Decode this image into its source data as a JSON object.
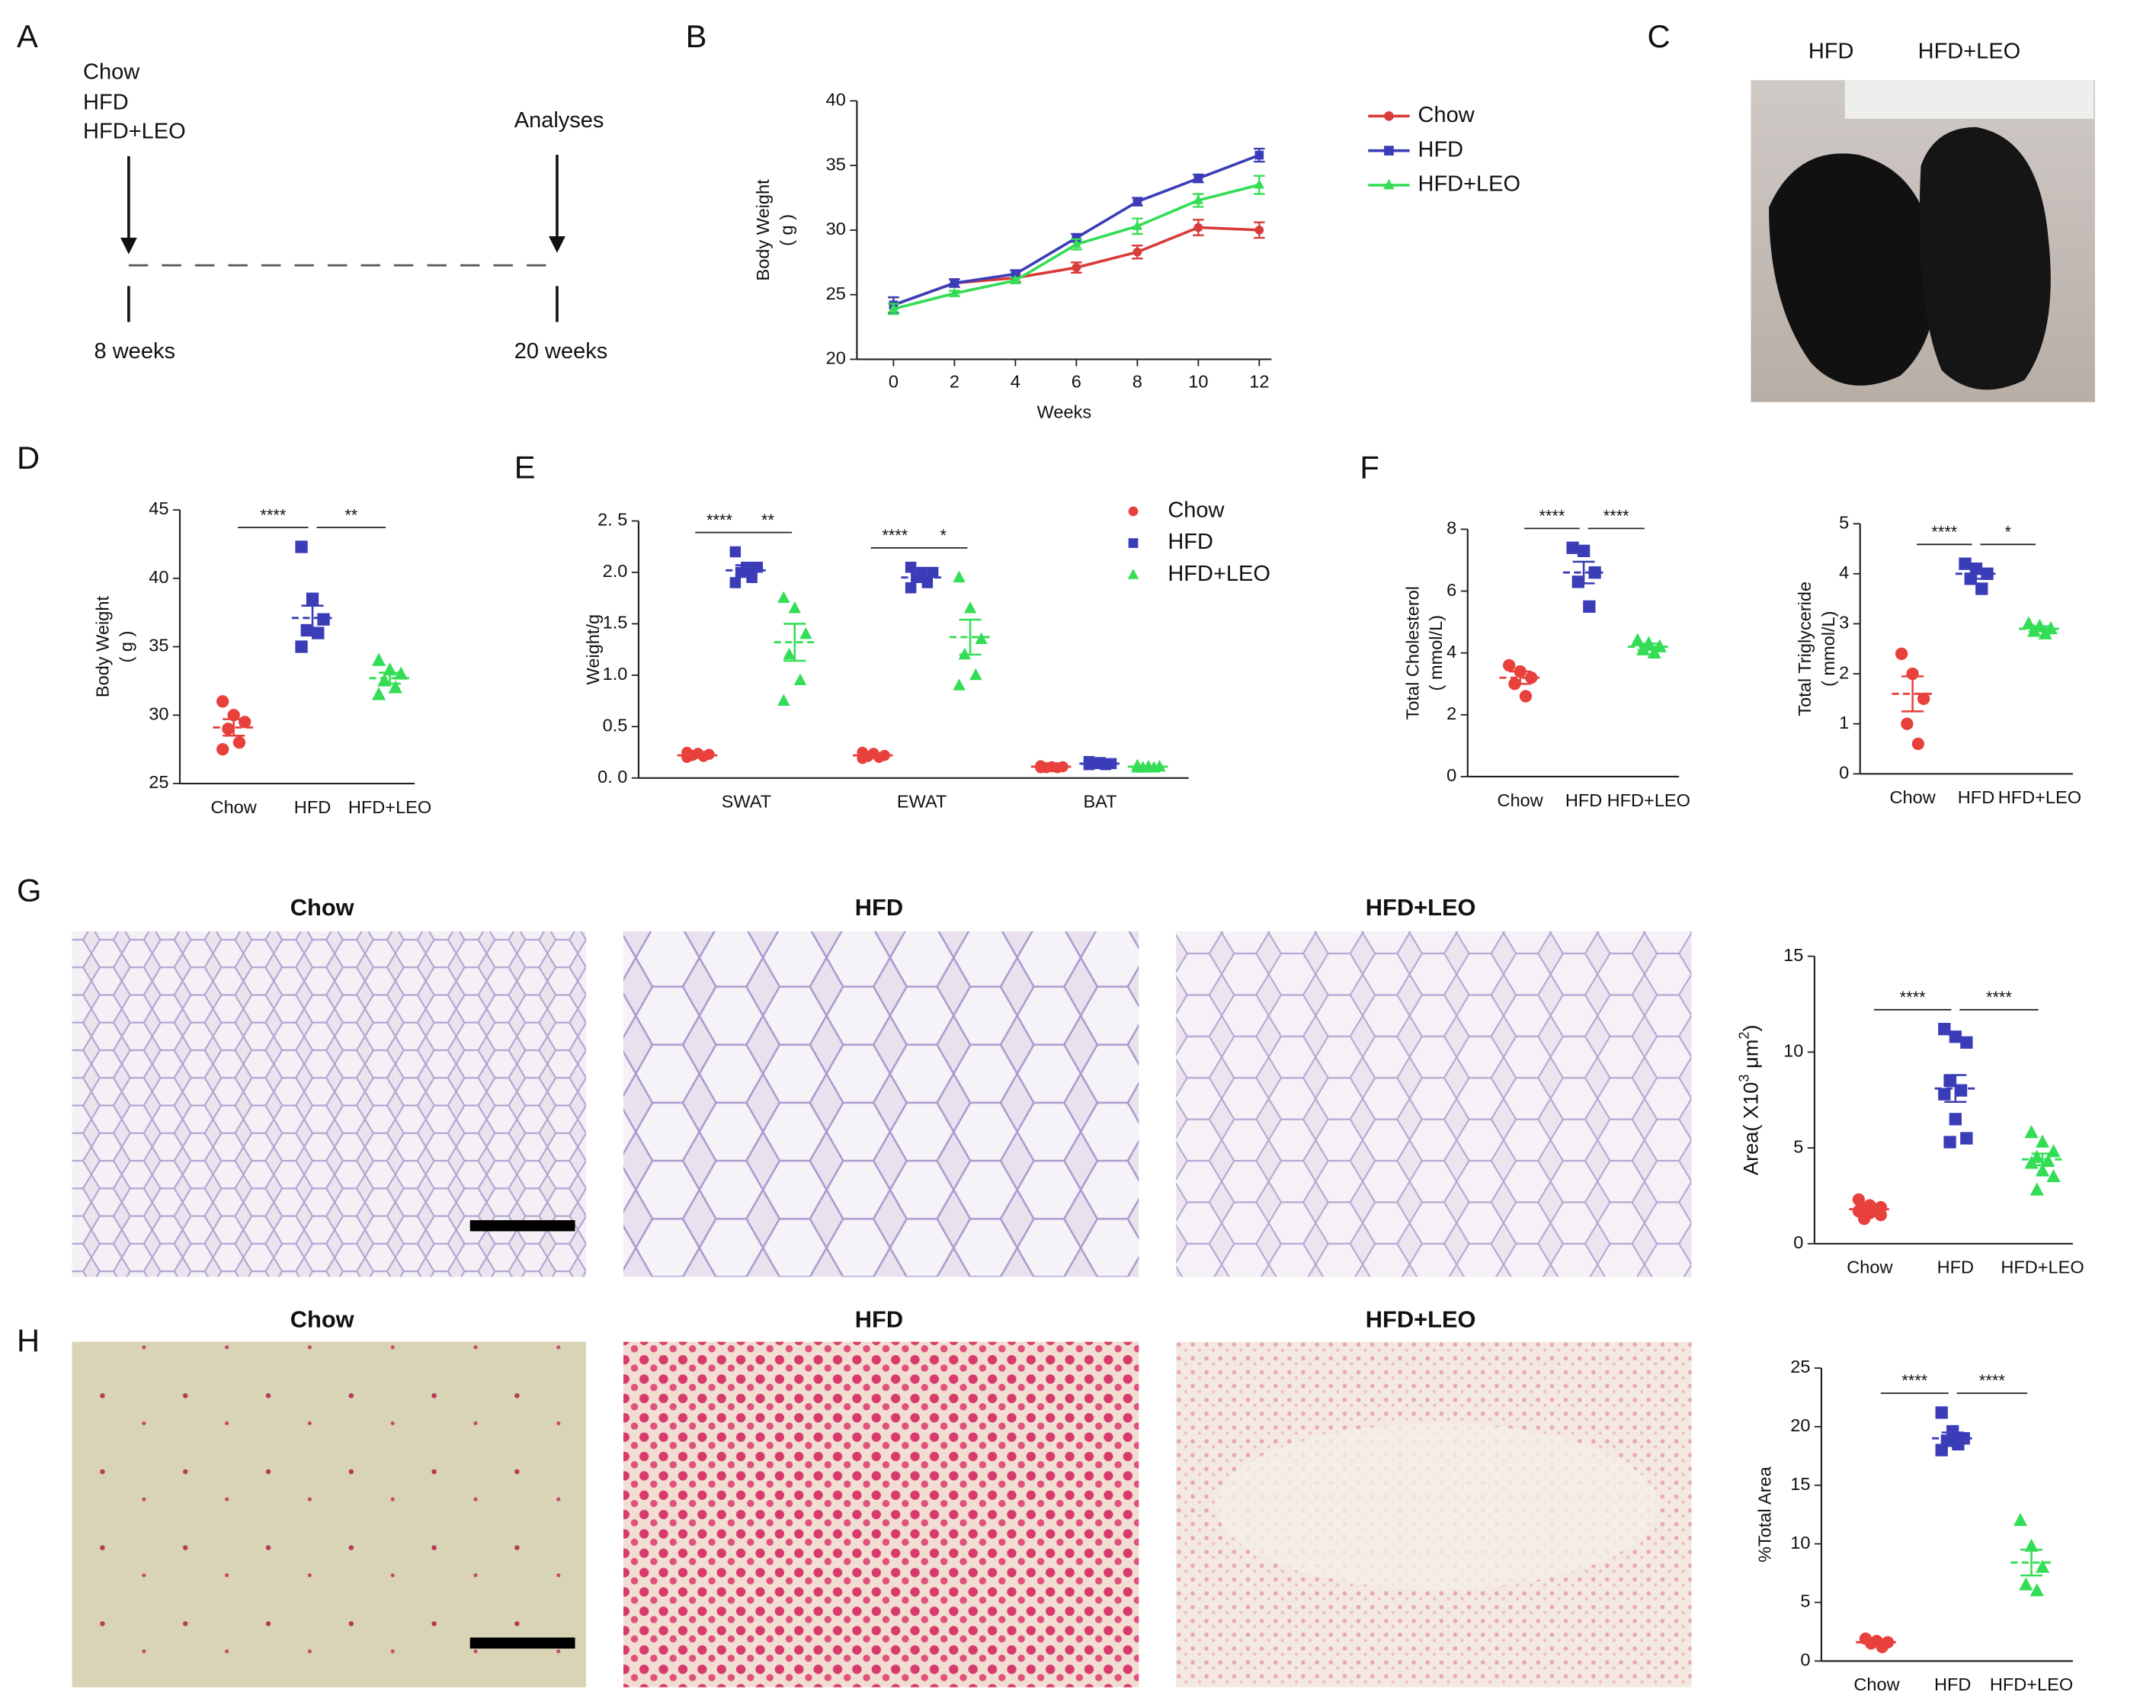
{
  "figure": {
    "panel_labels": [
      "A",
      "B",
      "C",
      "D",
      "E",
      "F",
      "G",
      "H"
    ]
  },
  "timeline": {
    "groups": [
      "Chow",
      "HFD",
      "HFD+LEO"
    ],
    "end_label": "Analyses",
    "start": "8 weeks",
    "end": "20 weeks"
  },
  "photo": {
    "labels": [
      "HFD",
      "HFD+LEO"
    ]
  },
  "histology": [
    {
      "titles": [
        "Chow",
        "HFD",
        "HFD+LEO"
      ]
    },
    {
      "titles": [
        "Chow",
        "HFD",
        "HFD+LEO"
      ]
    }
  ],
  "chart_data": [
    {
      "type": "line",
      "xlabel": "Weeks",
      "ylabel": [
        "Body Weight",
        "( g )"
      ],
      "x": [
        0,
        2,
        4,
        6,
        8,
        10,
        12
      ],
      "xlim": [
        -1.2,
        12.4
      ],
      "xticks": [
        0,
        2,
        4,
        6,
        8,
        10,
        12
      ],
      "ylim": [
        20,
        40
      ],
      "yticks": [
        20,
        25,
        30,
        35,
        40
      ],
      "legend": true,
      "series": [
        {
          "name": "Chow",
          "color": "#d93a3a",
          "marker": "circle",
          "values": [
            24.2,
            25.9,
            26.3,
            27.1,
            28.3,
            30.2,
            30.0
          ],
          "errors": [
            0.6,
            0.3,
            0.3,
            0.4,
            0.5,
            0.6,
            0.6
          ]
        },
        {
          "name": "HFD",
          "color": "#3b3db8",
          "marker": "square",
          "values": [
            24.2,
            25.9,
            26.6,
            29.4,
            32.2,
            34.0,
            35.8
          ],
          "errors": [
            0.6,
            0.3,
            0.3,
            0.3,
            0.3,
            0.3,
            0.5
          ]
        },
        {
          "name": "HFD+LEO",
          "color": "#33dd55",
          "marker": "triangle",
          "values": [
            23.9,
            25.1,
            26.1,
            28.9,
            30.3,
            32.3,
            33.5
          ],
          "errors": [
            0.4,
            0.2,
            0.2,
            0.4,
            0.6,
            0.5,
            0.7
          ]
        }
      ]
    },
    {
      "type": "dot",
      "ylabel": [
        "Body Weight",
        "( g )"
      ],
      "categories": [
        "Chow",
        "HFD",
        "HFD+LEO"
      ],
      "ylim": [
        25,
        45
      ],
      "yticks": [
        25,
        30,
        35,
        40,
        45
      ],
      "groups": [
        {
          "color": "#e8413c",
          "marker": "circle",
          "points": [
            31.0,
            30.0,
            29.5,
            29.0,
            28.0,
            27.5
          ],
          "mean": 29.1,
          "sem": 0.6
        },
        {
          "color": "#3b3db8",
          "marker": "square",
          "points": [
            42.3,
            38.5,
            37.0,
            36.2,
            36.0,
            35.0
          ],
          "mean": 37.1,
          "sem": 0.9
        },
        {
          "color": "#33dd55",
          "marker": "triangle",
          "points": [
            34.0,
            33.3,
            33.0,
            32.5,
            32.0,
            31.5
          ],
          "mean": 32.7,
          "sem": 0.4
        }
      ],
      "significance": [
        "****",
        "**"
      ]
    },
    {
      "type": "grouped_dot",
      "ylabel": [
        "Weight/g"
      ],
      "categories": [
        "SWAT",
        "EWAT",
        "BAT"
      ],
      "ylim": [
        0,
        2.5
      ],
      "yticks": [
        {
          "value": 0,
          "label": "0. 0"
        },
        0.5,
        {
          "value": 1,
          "label": "1.0"
        },
        1.5,
        {
          "value": 2,
          "label": "2.0"
        },
        {
          "value": 2.5,
          "label": "2. 5"
        }
      ],
      "legend": true,
      "series": [
        {
          "name": "Chow",
          "color": "#e8413c",
          "marker": "circle",
          "points": [
            [
              0.25,
              0.24,
              0.23,
              0.22,
              0.21,
              0.2
            ],
            [
              0.25,
              0.24,
              0.22,
              0.21,
              0.2,
              0.19
            ],
            [
              0.12,
              0.11,
              0.11,
              0.1,
              0.1,
              0.1
            ]
          ],
          "mean": [
            0.22,
            0.22,
            0.11
          ],
          "sem": [
            0.01,
            0.01,
            0.005
          ]
        },
        {
          "name": "HFD",
          "color": "#3b3db8",
          "marker": "square",
          "points": [
            [
              2.2,
              2.05,
              2.05,
              2.0,
              1.95,
              1.9
            ],
            [
              2.05,
              2.0,
              2.0,
              1.95,
              1.9,
              1.85
            ],
            [
              0.16,
              0.15,
              0.14,
              0.14,
              0.13,
              0.13
            ]
          ],
          "mean": [
            2.02,
            1.95,
            0.14
          ],
          "sem": [
            0.05,
            0.03,
            0.005
          ]
        },
        {
          "name": "HFD+LEO",
          "color": "#33dd55",
          "marker": "triangle",
          "points": [
            [
              1.75,
              1.65,
              1.4,
              1.2,
              0.95,
              0.75
            ],
            [
              1.95,
              1.65,
              1.35,
              1.2,
              1.0,
              0.9
            ],
            [
              0.12,
              0.11,
              0.11,
              0.1,
              0.1,
              0.1
            ]
          ],
          "mean": [
            1.32,
            1.37,
            0.11
          ],
          "sem": [
            0.18,
            0.17,
            0.005
          ]
        }
      ],
      "significance": [
        [
          "****",
          "**"
        ],
        [
          "****",
          "*"
        ]
      ]
    },
    {
      "type": "dot",
      "ylabel": [
        "Total Cholesterol",
        "( mmol/L)"
      ],
      "categories": [
        "Chow",
        "HFD",
        "HFD+LEO"
      ],
      "ylim": [
        0,
        8
      ],
      "yticks": [
        0,
        2,
        4,
        6,
        8
      ],
      "groups": [
        {
          "color": "#e8413c",
          "marker": "circle",
          "points": [
            3.6,
            3.4,
            3.2,
            3.0,
            2.6
          ],
          "mean": 3.2,
          "sem": 0.2
        },
        {
          "color": "#3b3db8",
          "marker": "square",
          "points": [
            7.4,
            7.3,
            6.6,
            6.3,
            5.5
          ],
          "mean": 6.6,
          "sem": 0.35
        },
        {
          "color": "#33dd55",
          "marker": "triangle",
          "points": [
            4.4,
            4.3,
            4.2,
            4.1,
            4.0
          ],
          "mean": 4.2,
          "sem": 0.1
        }
      ],
      "significance": [
        "****",
        "****"
      ]
    },
    {
      "type": "dot",
      "ylabel": [
        "Total Triglyceride",
        "( mmol/L)"
      ],
      "categories": [
        "Chow",
        "HFD",
        "HFD+LEO"
      ],
      "ylim": [
        0,
        5
      ],
      "yticks": [
        0,
        1,
        2,
        3,
        4,
        5
      ],
      "groups": [
        {
          "color": "#e8413c",
          "marker": "circle",
          "points": [
            2.4,
            2.0,
            1.5,
            1.0,
            0.6
          ],
          "mean": 1.6,
          "sem": 0.35
        },
        {
          "color": "#3b3db8",
          "marker": "square",
          "points": [
            4.2,
            4.1,
            4.0,
            3.9,
            3.7
          ],
          "mean": 4.0,
          "sem": 0.1
        },
        {
          "color": "#33dd55",
          "marker": "triangle",
          "points": [
            3.0,
            2.95,
            2.9,
            2.85,
            2.8
          ],
          "mean": 2.9,
          "sem": 0.05
        }
      ],
      "significance": [
        "****",
        "*"
      ]
    },
    {
      "type": "dot",
      "ylabel_parts": [
        {
          "text": "Area( X10"
        },
        {
          "text": "3",
          "sup": true
        },
        {
          "text": " μm"
        },
        {
          "text": "2",
          "sup": true
        },
        {
          "text": ")"
        }
      ],
      "categories": [
        "Chow",
        "HFD",
        "HFD+LEO"
      ],
      "ylim": [
        0,
        15
      ],
      "yticks": [
        0,
        5,
        10,
        15
      ],
      "groups": [
        {
          "color": "#e8413c",
          "marker": "circle",
          "points": [
            2.3,
            2.0,
            1.9,
            1.8,
            1.8,
            1.7,
            1.6,
            1.5,
            1.3
          ],
          "mean": 1.8,
          "sem": 0.1
        },
        {
          "color": "#3b3db8",
          "marker": "square",
          "points": [
            11.2,
            10.8,
            10.5,
            8.5,
            8.0,
            7.8,
            6.5,
            5.5,
            5.3
          ],
          "mean": 8.1,
          "sem": 0.7
        },
        {
          "color": "#33dd55",
          "marker": "triangle",
          "points": [
            5.8,
            5.3,
            4.8,
            4.5,
            4.3,
            4.2,
            3.8,
            3.5,
            2.8
          ],
          "mean": 4.4,
          "sem": 0.3
        }
      ],
      "significance": [
        "****",
        "****"
      ]
    },
    {
      "type": "dot",
      "ylabel": [
        "%Total Area"
      ],
      "categories": [
        "Chow",
        "HFD",
        "HFD+LEO"
      ],
      "ylim": [
        0,
        25
      ],
      "yticks": [
        0,
        5,
        10,
        15,
        20,
        25
      ],
      "groups": [
        {
          "color": "#e8413c",
          "marker": "circle",
          "points": [
            1.9,
            1.7,
            1.6,
            1.5,
            1.2
          ],
          "mean": 1.6,
          "sem": 0.1
        },
        {
          "color": "#3b3db8",
          "marker": "square",
          "points": [
            21.2,
            19.6,
            19.0,
            18.8,
            18.5,
            18.0
          ],
          "mean": 19.0,
          "sem": 0.5
        },
        {
          "color": "#33dd55",
          "marker": "triangle",
          "points": [
            12.0,
            9.8,
            8.0,
            6.5,
            6.0
          ],
          "mean": 8.4,
          "sem": 1.1
        }
      ],
      "significance": [
        "****",
        "****"
      ]
    }
  ]
}
